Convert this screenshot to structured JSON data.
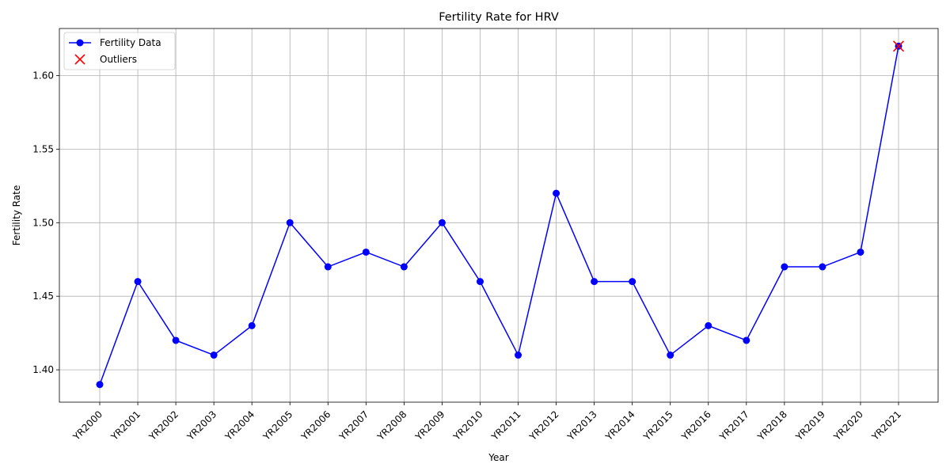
{
  "chart_data": {
    "type": "line",
    "title": "Fertility Rate for HRV",
    "xlabel": "Year",
    "ylabel": "Fertility Rate",
    "categories": [
      "YR2000",
      "YR2001",
      "YR2002",
      "YR2003",
      "YR2004",
      "YR2005",
      "YR2006",
      "YR2007",
      "YR2008",
      "YR2009",
      "YR2010",
      "YR2011",
      "YR2012",
      "YR2013",
      "YR2014",
      "YR2015",
      "YR2016",
      "YR2017",
      "YR2018",
      "YR2019",
      "YR2020",
      "YR2021"
    ],
    "series": [
      {
        "name": "Fertility Data",
        "values": [
          1.39,
          1.46,
          1.42,
          1.41,
          1.43,
          1.5,
          1.47,
          1.48,
          1.47,
          1.5,
          1.46,
          1.41,
          1.52,
          1.46,
          1.46,
          1.41,
          1.43,
          1.42,
          1.47,
          1.47,
          1.48,
          1.62
        ],
        "color": "#0000ff",
        "marker": "circle"
      },
      {
        "name": "Outliers",
        "points": [
          {
            "x": "YR2021",
            "y": 1.62
          }
        ],
        "color": "#ff0000",
        "marker": "x"
      }
    ],
    "ylim": [
      1.378,
      1.632
    ],
    "yticks": [
      "1.40",
      "1.45",
      "1.50",
      "1.55",
      "1.60"
    ],
    "grid": true,
    "legend_position": "top-left"
  }
}
